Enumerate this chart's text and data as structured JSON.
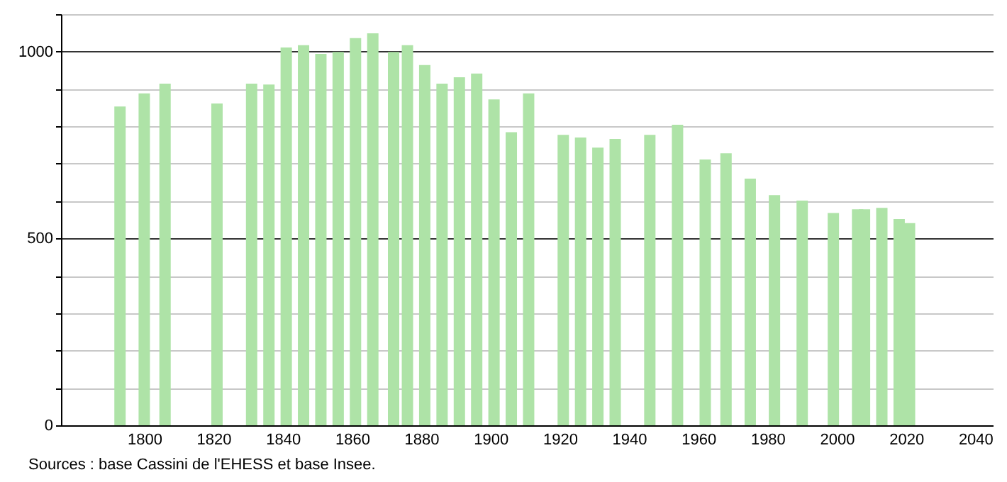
{
  "chart_data": {
    "type": "bar",
    "x": [
      1793,
      1800,
      1806,
      1821,
      1831,
      1836,
      1841,
      1846,
      1851,
      1856,
      1861,
      1866,
      1872,
      1876,
      1881,
      1886,
      1891,
      1896,
      1901,
      1906,
      1911,
      1921,
      1926,
      1931,
      1936,
      1946,
      1954,
      1962,
      1968,
      1975,
      1982,
      1990,
      1999,
      2006,
      2008,
      2013,
      2018,
      2021
    ],
    "values": [
      853,
      888,
      914,
      861,
      914,
      912,
      1011,
      1017,
      994,
      999,
      1036,
      1049,
      999,
      1017,
      964,
      914,
      931,
      941,
      872,
      784,
      888,
      777,
      770,
      743,
      766,
      777,
      804,
      711,
      728,
      660,
      616,
      601,
      568,
      578,
      578,
      582,
      552,
      541
    ],
    "color": "#aee3a7",
    "xlim": [
      1778,
      2043
    ],
    "xticks": [
      1800,
      1820,
      1840,
      1860,
      1880,
      1900,
      1920,
      1940,
      1960,
      1980,
      2000,
      2020,
      2040
    ],
    "ylim": [
      0,
      1100
    ],
    "yticks": [
      0,
      {
        "value": 100,
        "label": null
      },
      {
        "value": 200,
        "label": null
      },
      {
        "value": 300,
        "label": null
      },
      {
        "value": 400,
        "label": null
      },
      500,
      {
        "value": 600,
        "label": null
      },
      {
        "value": 700,
        "label": null
      },
      {
        "value": 800,
        "label": null
      },
      {
        "value": 900,
        "label": null
      },
      1000,
      {
        "value": 1100,
        "label": null
      }
    ],
    "grid": "y",
    "annotations": [
      "Sources : base Cassini de l'EHESS et base Insee."
    ]
  }
}
